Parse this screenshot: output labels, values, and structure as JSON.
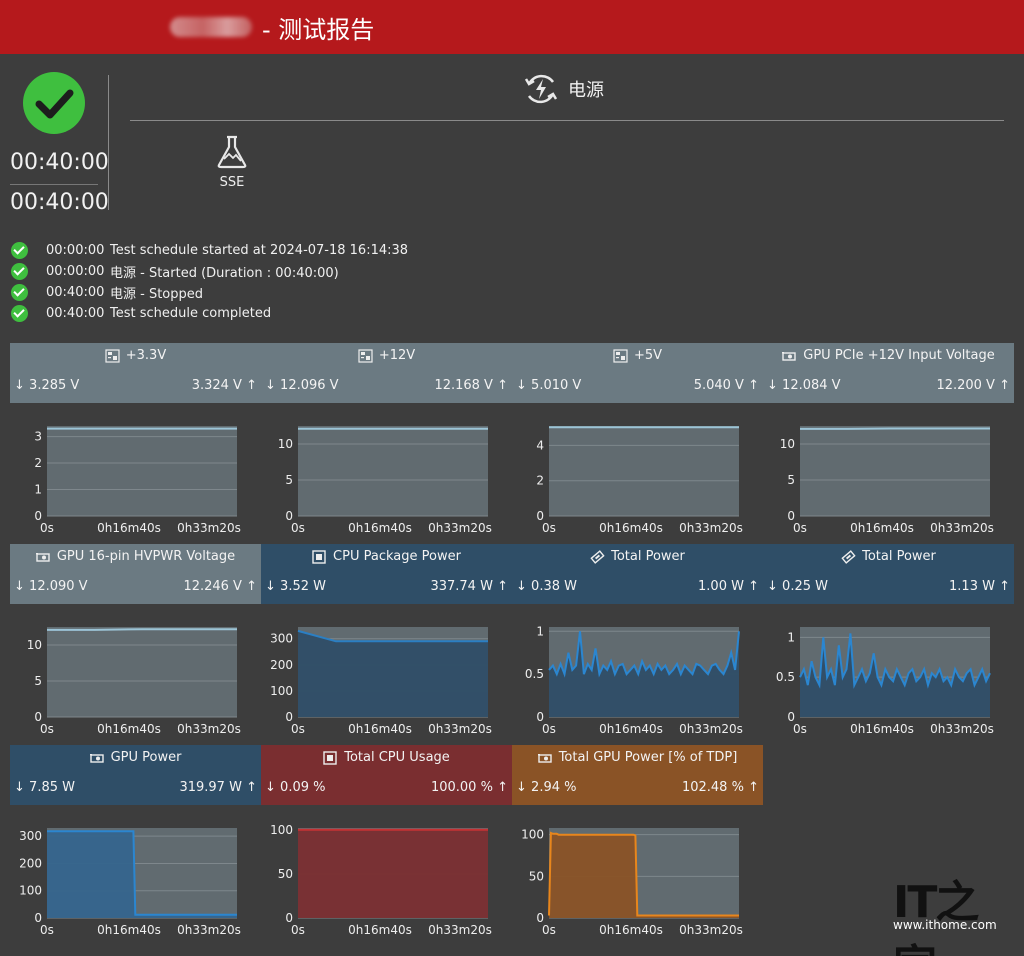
{
  "header": {
    "title": "- 测试报告"
  },
  "summary": {
    "elapsed": "00:40:00",
    "total": "00:40:00"
  },
  "tabs": {
    "power": "电源",
    "sse": "SSE"
  },
  "log": [
    {
      "time": "00:00:00",
      "text": "Test schedule started at 2024-07-18 16:14:38"
    },
    {
      "time": "00:00:00",
      "text": "电源 - Started (Duration : 00:40:00)"
    },
    {
      "time": "00:40:00",
      "text": "电源 - Stopped"
    },
    {
      "time": "00:40:00",
      "text": "Test schedule completed"
    }
  ],
  "panels": [
    {
      "title": "+3.3V",
      "min": "3.285 V",
      "max": "3.324 V",
      "icon": "motherboard-icon",
      "color": "#6b7a82"
    },
    {
      "title": "+12V",
      "min": "12.096 V",
      "max": "12.168 V",
      "icon": "motherboard-icon",
      "color": "#6b7a82"
    },
    {
      "title": "+5V",
      "min": "5.010 V",
      "max": "5.040 V",
      "icon": "motherboard-icon",
      "color": "#6b7a82"
    },
    {
      "title": "GPU PCIe +12V Input Voltage",
      "min": "12.084 V",
      "max": "12.200 V",
      "icon": "gpu-icon",
      "color": "#6b7a82"
    },
    {
      "title": "GPU 16-pin HVPWR Voltage",
      "min": "12.090 V",
      "max": "12.246 V",
      "icon": "gpu-icon",
      "color": "#6b7a82"
    },
    {
      "title": "CPU Package Power",
      "min": "3.52 W",
      "max": "337.74 W",
      "icon": "cpu-icon",
      "color": "#2f4e67"
    },
    {
      "title": "Total Power",
      "min": "0.38 W",
      "max": "1.00 W",
      "icon": "memory-icon",
      "color": "#2f4e67"
    },
    {
      "title": "Total Power",
      "min": "0.25 W",
      "max": "1.13 W",
      "icon": "memory-icon",
      "color": "#2f4e67"
    },
    {
      "title": "GPU Power",
      "min": "7.85 W",
      "max": "319.97 W",
      "icon": "gpu-icon",
      "color": "#2f4e67"
    },
    {
      "title": "Total CPU Usage",
      "min": "0.09 %",
      "max": "100.00 %",
      "icon": "cpu-icon",
      "color": "#7a2e30"
    },
    {
      "title": "Total GPU Power [% of TDP]",
      "min": "2.94 %",
      "max": "102.48 %",
      "icon": "gpu-icon",
      "color": "#8a5326"
    }
  ],
  "chart_data": [
    {
      "type": "line",
      "x_ticks": [
        "0s",
        "0h16m40s",
        "0h33m20s"
      ],
      "y_ticks": [
        0,
        1,
        2,
        3
      ],
      "ylim": [
        0,
        3.4
      ],
      "series": [
        {
          "values": [
            3.3,
            3.3,
            3.3,
            3.3,
            3.3
          ]
        }
      ]
    },
    {
      "type": "line",
      "x_ticks": [
        "0s",
        "0h16m40s",
        "0h33m20s"
      ],
      "y_ticks": [
        0,
        5,
        10
      ],
      "ylim": [
        0,
        12.5
      ],
      "series": [
        {
          "values": [
            12.13,
            12.13,
            12.13,
            12.13,
            12.13
          ]
        }
      ]
    },
    {
      "type": "line",
      "x_ticks": [
        "0s",
        "0h16m40s",
        "0h33m20s"
      ],
      "y_ticks": [
        0,
        2,
        4
      ],
      "ylim": [
        0,
        5.1
      ],
      "series": [
        {
          "values": [
            5.03,
            5.03,
            5.03,
            5.03,
            5.03
          ]
        }
      ]
    },
    {
      "type": "line",
      "x_ticks": [
        "0s",
        "0h16m40s",
        "0h33m20s"
      ],
      "y_ticks": [
        0,
        5,
        10
      ],
      "ylim": [
        0,
        12.5
      ],
      "series": [
        {
          "values": [
            12.1,
            12.1,
            12.15,
            12.15,
            12.15
          ]
        }
      ]
    },
    {
      "type": "line",
      "x_ticks": [
        "0s",
        "0h16m40s",
        "0h33m20s"
      ],
      "y_ticks": [
        0,
        5,
        10
      ],
      "ylim": [
        0,
        12.5
      ],
      "series": [
        {
          "values": [
            12.1,
            12.1,
            12.2,
            12.2,
            12.2
          ]
        }
      ]
    },
    {
      "type": "line",
      "x_ticks": [
        "0s",
        "0h16m40s",
        "0h33m20s"
      ],
      "y_ticks": [
        0,
        100,
        200,
        300
      ],
      "ylim": [
        0,
        345
      ],
      "series": [
        {
          "values": [
            330,
            290,
            290,
            290,
            290,
            290
          ]
        }
      ]
    },
    {
      "type": "area",
      "x_ticks": [
        "0s",
        "0h16m40s",
        "0h33m20s"
      ],
      "y_ticks": [
        0,
        0.5,
        1
      ],
      "ylim": [
        0,
        1.05
      ],
      "series": [
        {
          "values": [
            0.55,
            0.6,
            0.5,
            0.62,
            0.5,
            0.75,
            0.55,
            0.6,
            1.0,
            0.5,
            0.62,
            0.55,
            0.8,
            0.5,
            0.6,
            0.55,
            0.65,
            0.5,
            0.6,
            0.62,
            0.5,
            0.55,
            0.6,
            0.5,
            0.65,
            0.55,
            0.6,
            0.5,
            0.62,
            0.55,
            0.6,
            0.5,
            0.55,
            0.62,
            0.5,
            0.6,
            0.55,
            0.5,
            0.62,
            0.6,
            0.55,
            0.5,
            0.6,
            0.62,
            0.55,
            0.5,
            0.6,
            0.75,
            0.55,
            1.0
          ]
        }
      ]
    },
    {
      "type": "area",
      "x_ticks": [
        "0s",
        "0h16m40s",
        "0h33m20s"
      ],
      "y_ticks": [
        0,
        0.5,
        1
      ],
      "ylim": [
        0,
        1.13
      ],
      "series": [
        {
          "values": [
            0.5,
            0.6,
            0.4,
            0.7,
            0.5,
            0.4,
            1.0,
            0.5,
            0.6,
            0.4,
            0.9,
            0.5,
            0.6,
            1.05,
            0.4,
            0.5,
            0.6,
            0.45,
            0.55,
            0.8,
            0.5,
            0.4,
            0.6,
            0.5,
            0.45,
            0.6,
            0.5,
            0.4,
            0.55,
            0.6,
            0.45,
            0.5,
            0.6,
            0.4,
            0.55,
            0.5,
            0.6,
            0.45,
            0.5,
            0.4,
            0.6,
            0.5,
            0.45,
            0.55,
            0.6,
            0.4,
            0.5,
            0.6,
            0.45,
            0.55
          ]
        }
      ]
    },
    {
      "type": "area",
      "x_ticks": [
        "0s",
        "0h16m40s",
        "0h33m20s"
      ],
      "y_ticks": [
        0,
        100,
        200,
        300
      ],
      "ylim": [
        0,
        330
      ],
      "series": [
        {
          "values": [
            318,
            318,
            318,
            318,
            318,
            318,
            318,
            318,
            318,
            318,
            318,
            318,
            318,
            318,
            318,
            318,
            318,
            318,
            318,
            318,
            318,
            318,
            318,
            318,
            318,
            318,
            318,
            318,
            318,
            318,
            318,
            318,
            318,
            318,
            318,
            318,
            318,
            318,
            318,
            318,
            318,
            318,
            318,
            318,
            318,
            318,
            12,
            12,
            12,
            12,
            12,
            12,
            12,
            12,
            12,
            12,
            12,
            12,
            12,
            12,
            12,
            12,
            12,
            12,
            12,
            12,
            12,
            12,
            12,
            12,
            12,
            12,
            12,
            12,
            12,
            12,
            12,
            12,
            12,
            12,
            12,
            12,
            12,
            12,
            12,
            12,
            12,
            12,
            12,
            12,
            12,
            12,
            12,
            12,
            12,
            12,
            12,
            12,
            12,
            12
          ]
        }
      ]
    },
    {
      "type": "area",
      "x_ticks": [
        "0s",
        "0h16m40s",
        "0h33m20s"
      ],
      "y_ticks": [
        0,
        50,
        100
      ],
      "ylim": [
        0,
        102
      ],
      "series": [
        {
          "values": [
            100,
            100,
            100,
            100,
            100
          ]
        }
      ]
    },
    {
      "type": "area",
      "x_ticks": [
        "0s",
        "0h16m40s",
        "0h33m20s"
      ],
      "y_ticks": [
        0,
        50,
        100
      ],
      "ylim": [
        0,
        108
      ],
      "series": [
        {
          "values": [
            3,
            102,
            101,
            101,
            101,
            100,
            100,
            100,
            100,
            100,
            100,
            100,
            100,
            100,
            100,
            100,
            100,
            100,
            100,
            100,
            100,
            100,
            100,
            100,
            100,
            100,
            100,
            100,
            100,
            100,
            100,
            100,
            100,
            100,
            100,
            100,
            100,
            100,
            100,
            100,
            100,
            100,
            100,
            100,
            100,
            99,
            3,
            3,
            3,
            3,
            3,
            3,
            3,
            3,
            3,
            3,
            3,
            3,
            3,
            3,
            3,
            3,
            3,
            3,
            3,
            3,
            3,
            3,
            3,
            3,
            3,
            3,
            3,
            3,
            3,
            3,
            3,
            3,
            3,
            3,
            3,
            3,
            3,
            3,
            3,
            3,
            3,
            3,
            3,
            3,
            3,
            3,
            3,
            3,
            3,
            3,
            3,
            3,
            3,
            3
          ]
        }
      ]
    }
  ],
  "watermark": {
    "logo": "IT之家",
    "url": "www.ithome.com"
  }
}
